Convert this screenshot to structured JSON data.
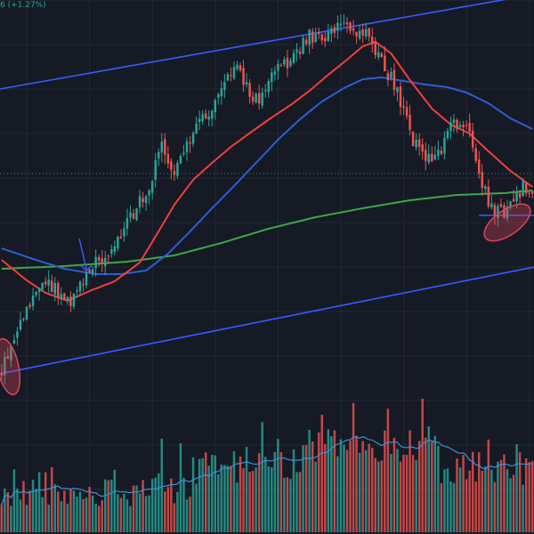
{
  "header": {
    "change_text": "6 (+1.27%)"
  },
  "colors": {
    "background": "#161a25",
    "grid": "#232834",
    "up": "#26a69a",
    "down": "#ef5350",
    "ema_fast": "#f23f3a",
    "ema_mid": "#2c5ed2",
    "sma_long": "#3fa64a",
    "channel": "#3d5afe",
    "volume_ma": "#3f8fd6",
    "price_line": "#2a8f8a",
    "annotation_fill": "#d9455a"
  },
  "chart_data": {
    "type": "candlestick",
    "title": "",
    "xlabel": "",
    "ylabel": "",
    "grid": true,
    "ylim": [
      40,
      100
    ],
    "volume_ylim": [
      0,
      155
    ],
    "price_line_value": 80.5,
    "candle_count": 170,
    "sampled_closes": [
      {
        "i": 0,
        "close": 58.6
      },
      {
        "i": 5,
        "close": 62.8
      },
      {
        "i": 10,
        "close": 67.0
      },
      {
        "i": 16,
        "close": 68.0
      },
      {
        "i": 22,
        "close": 65.5
      },
      {
        "i": 28,
        "close": 70.0
      },
      {
        "i": 35,
        "close": 71.5
      },
      {
        "i": 42,
        "close": 76.0
      },
      {
        "i": 47,
        "close": 79.0
      },
      {
        "i": 51,
        "close": 83.5
      },
      {
        "i": 55,
        "close": 80.5
      },
      {
        "i": 60,
        "close": 84.5
      },
      {
        "i": 65,
        "close": 87.0
      },
      {
        "i": 70,
        "close": 89.5
      },
      {
        "i": 75,
        "close": 93.0
      },
      {
        "i": 78,
        "close": 90.0
      },
      {
        "i": 82,
        "close": 88.5
      },
      {
        "i": 86,
        "close": 92.5
      },
      {
        "i": 92,
        "close": 93.0
      },
      {
        "i": 98,
        "close": 96.0
      },
      {
        "i": 103,
        "close": 95.5
      },
      {
        "i": 108,
        "close": 97.0
      },
      {
        "i": 113,
        "close": 96.5
      },
      {
        "i": 117,
        "close": 96.0
      },
      {
        "i": 120,
        "close": 93.5
      },
      {
        "i": 126,
        "close": 90.0
      },
      {
        "i": 130,
        "close": 85.0
      },
      {
        "i": 134,
        "close": 82.5
      },
      {
        "i": 139,
        "close": 82.5
      },
      {
        "i": 143,
        "close": 86.0
      },
      {
        "i": 148,
        "close": 86.0
      },
      {
        "i": 152,
        "close": 80.5
      },
      {
        "i": 156,
        "close": 76.5
      },
      {
        "i": 160,
        "close": 76.0
      },
      {
        "i": 163,
        "close": 77.5
      },
      {
        "i": 166,
        "close": 79.0
      },
      {
        "i": 169,
        "close": 78.5
      }
    ],
    "ema_fast_samples": [
      {
        "i": 0,
        "v": 70.8
      },
      {
        "i": 8,
        "v": 68.5
      },
      {
        "i": 14,
        "v": 67.1
      },
      {
        "i": 21,
        "v": 66.2
      },
      {
        "i": 28,
        "v": 67.3
      },
      {
        "i": 36,
        "v": 68.4
      },
      {
        "i": 44,
        "v": 70.5
      },
      {
        "i": 50,
        "v": 74.0
      },
      {
        "i": 55,
        "v": 77.0
      },
      {
        "i": 61,
        "v": 79.8
      },
      {
        "i": 67,
        "v": 81.7
      },
      {
        "i": 73,
        "v": 83.5
      },
      {
        "i": 80,
        "v": 85.3
      },
      {
        "i": 86,
        "v": 86.8
      },
      {
        "i": 92,
        "v": 88.2
      },
      {
        "i": 98,
        "v": 89.8
      },
      {
        "i": 104,
        "v": 91.6
      },
      {
        "i": 110,
        "v": 93.3
      },
      {
        "i": 115,
        "v": 94.8
      },
      {
        "i": 119,
        "v": 95.3
      },
      {
        "i": 124,
        "v": 94.0
      },
      {
        "i": 130,
        "v": 91.0
      },
      {
        "i": 137,
        "v": 87.8
      },
      {
        "i": 143,
        "v": 86.0
      },
      {
        "i": 149,
        "v": 85.0
      },
      {
        "i": 155,
        "v": 83.0
      },
      {
        "i": 162,
        "v": 80.8
      },
      {
        "i": 169,
        "v": 79.0
      }
    ],
    "ema_mid_samples": [
      {
        "i": 0,
        "v": 72.1
      },
      {
        "i": 10,
        "v": 70.9
      },
      {
        "i": 20,
        "v": 69.8
      },
      {
        "i": 30,
        "v": 69.2
      },
      {
        "i": 38,
        "v": 69.2
      },
      {
        "i": 46,
        "v": 69.6
      },
      {
        "i": 53,
        "v": 71.5
      },
      {
        "i": 60,
        "v": 74.0
      },
      {
        "i": 67,
        "v": 76.6
      },
      {
        "i": 74,
        "v": 79.1
      },
      {
        "i": 81,
        "v": 81.7
      },
      {
        "i": 88,
        "v": 84.3
      },
      {
        "i": 95,
        "v": 86.6
      },
      {
        "i": 102,
        "v": 88.6
      },
      {
        "i": 109,
        "v": 90.1
      },
      {
        "i": 115,
        "v": 91.1
      },
      {
        "i": 121,
        "v": 91.3
      },
      {
        "i": 128,
        "v": 90.9
      },
      {
        "i": 135,
        "v": 90.5
      },
      {
        "i": 142,
        "v": 90.2
      },
      {
        "i": 148,
        "v": 89.6
      },
      {
        "i": 155,
        "v": 88.4
      },
      {
        "i": 162,
        "v": 86.7
      },
      {
        "i": 169,
        "v": 85.5
      }
    ],
    "sma_long_samples": [
      {
        "i": 0,
        "v": 69.8
      },
      {
        "i": 20,
        "v": 70.1
      },
      {
        "i": 40,
        "v": 70.6
      },
      {
        "i": 55,
        "v": 71.3
      },
      {
        "i": 70,
        "v": 72.7
      },
      {
        "i": 85,
        "v": 74.3
      },
      {
        "i": 100,
        "v": 75.6
      },
      {
        "i": 115,
        "v": 76.6
      },
      {
        "i": 130,
        "v": 77.5
      },
      {
        "i": 145,
        "v": 78.1
      },
      {
        "i": 160,
        "v": 78.3
      },
      {
        "i": 169,
        "v": 78.6
      }
    ],
    "channel_upper": [
      {
        "i": 0,
        "v": 90.0
      },
      {
        "i": 169,
        "v": 100.6
      }
    ],
    "channel_lower": [
      {
        "i": 0,
        "v": 58.0
      },
      {
        "i": 169,
        "v": 70.0
      }
    ],
    "horizontal_level": 75.8,
    "signal_arrow_candle": 27,
    "annotations": [
      "ellipse-left",
      "ellipse-right"
    ]
  }
}
